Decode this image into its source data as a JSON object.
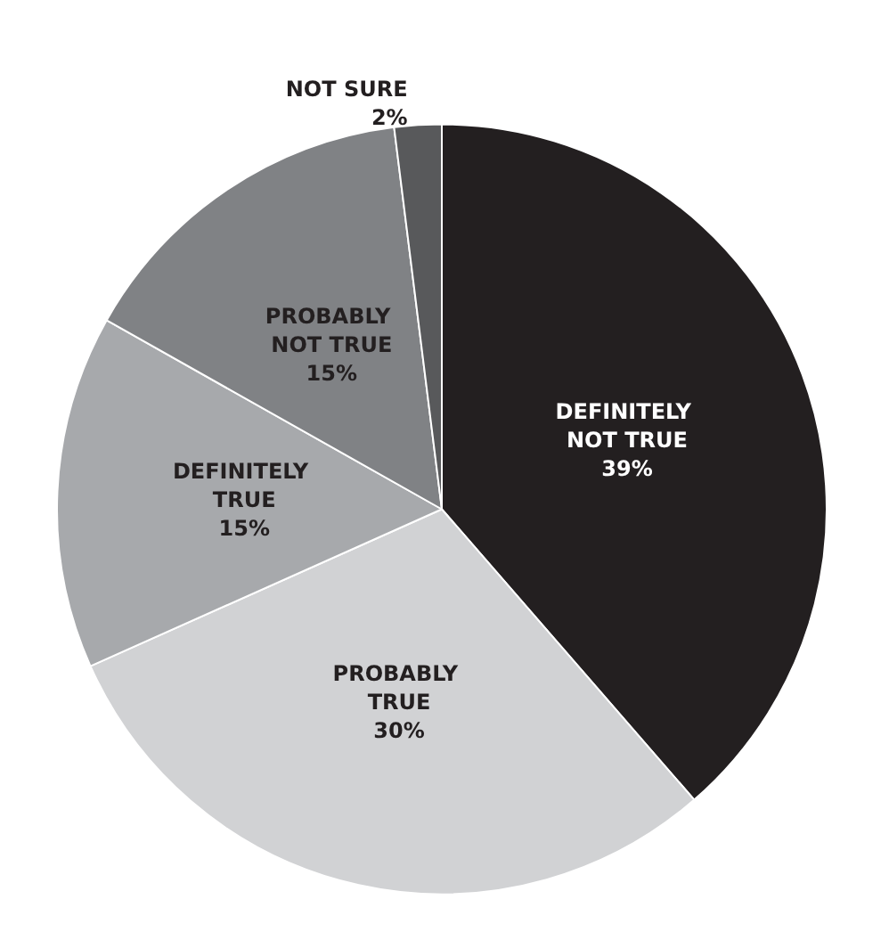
{
  "chart_data": {
    "type": "pie",
    "categories": [
      "DEFINITELY NOT TRUE",
      "PROBABLY TRUE",
      "DEFINITELY TRUE",
      "PROBABLY NOT TRUE",
      "NOT SURE"
    ],
    "values": [
      39,
      30,
      15,
      15,
      2
    ],
    "value_labels": [
      "39%",
      "30%",
      "15%",
      "15%",
      "2%"
    ],
    "colors": [
      "#231f20",
      "#d1d2d4",
      "#a7a9ac",
      "#808285",
      "#58595b"
    ],
    "legend": false
  }
}
